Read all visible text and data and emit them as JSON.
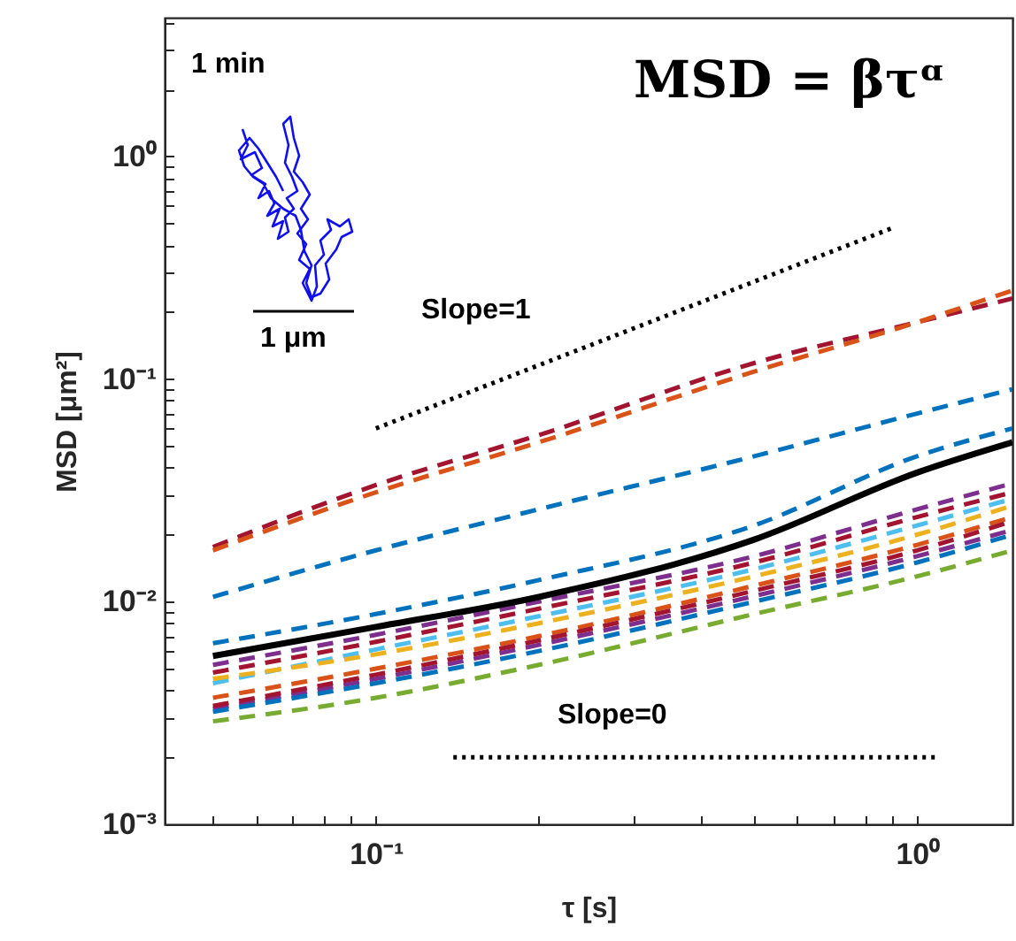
{
  "chart_data": {
    "type": "line",
    "xlabel": "τ [s]",
    "ylabel": "MSD [μm²]",
    "log": "xy",
    "xlim": [
      0.0407,
      1.5
    ],
    "ylim": [
      0.001,
      4.2
    ],
    "xticks": [
      {
        "value": 0.05,
        "label": null
      },
      {
        "value": 0.06,
        "label": null
      },
      {
        "value": 0.07,
        "label": null
      },
      {
        "value": 0.08,
        "label": null
      },
      {
        "value": 0.09,
        "label": null
      },
      {
        "value": 0.1,
        "label": "10⁻¹"
      },
      {
        "value": 0.2,
        "label": null
      },
      {
        "value": 0.3,
        "label": null
      },
      {
        "value": 0.4,
        "label": null
      },
      {
        "value": 0.5,
        "label": null
      },
      {
        "value": 0.6,
        "label": null
      },
      {
        "value": 0.7,
        "label": null
      },
      {
        "value": 0.8,
        "label": null
      },
      {
        "value": 0.9,
        "label": null
      },
      {
        "value": 1,
        "label": "10⁰"
      }
    ],
    "yticks": [
      {
        "value": 0.001,
        "label": "10⁻³"
      },
      {
        "value": 0.002,
        "label": null
      },
      {
        "value": 0.003,
        "label": null
      },
      {
        "value": 0.004,
        "label": null
      },
      {
        "value": 0.005,
        "label": null
      },
      {
        "value": 0.006,
        "label": null
      },
      {
        "value": 0.007,
        "label": null
      },
      {
        "value": 0.008,
        "label": null
      },
      {
        "value": 0.009,
        "label": null
      },
      {
        "value": 0.01,
        "label": "10⁻²"
      },
      {
        "value": 0.02,
        "label": null
      },
      {
        "value": 0.03,
        "label": null
      },
      {
        "value": 0.04,
        "label": null
      },
      {
        "value": 0.05,
        "label": null
      },
      {
        "value": 0.06,
        "label": null
      },
      {
        "value": 0.07,
        "label": null
      },
      {
        "value": 0.08,
        "label": null
      },
      {
        "value": 0.09,
        "label": null
      },
      {
        "value": 0.1,
        "label": "10⁻¹"
      },
      {
        "value": 0.2,
        "label": null
      },
      {
        "value": 0.3,
        "label": null
      },
      {
        "value": 0.4,
        "label": null
      },
      {
        "value": 0.5,
        "label": null
      },
      {
        "value": 0.6,
        "label": null
      },
      {
        "value": 0.7,
        "label": null
      },
      {
        "value": 0.8,
        "label": null
      },
      {
        "value": 0.9,
        "label": null
      },
      {
        "value": 1,
        "label": "10⁰"
      },
      {
        "value": 2,
        "label": null
      },
      {
        "value": 3,
        "label": null
      },
      {
        "value": 4,
        "label": null
      }
    ],
    "grid": false,
    "marker": "none",
    "x": [
      0.05,
      0.1,
      0.2,
      0.5,
      1.0,
      1.5
    ],
    "series": [
      {
        "color": "#a2142f",
        "line_style": "dashed",
        "values": [
          0.0176,
          0.0334,
          0.056,
          0.118,
          0.18,
          0.23
        ]
      },
      {
        "color": "#d95319",
        "line_style": "dashed",
        "values": [
          0.017,
          0.031,
          0.052,
          0.108,
          0.18,
          0.25
        ]
      },
      {
        "color": "#0072bd",
        "line_style": "dashed",
        "values": [
          0.0105,
          0.017,
          0.026,
          0.045,
          0.07,
          0.09
        ]
      },
      {
        "color": "#0072bd",
        "line_style": "dashed",
        "values": [
          0.0065,
          0.0088,
          0.0125,
          0.022,
          0.045,
          0.06
        ]
      },
      {
        "color": "#7e2f8e",
        "line_style": "dashed",
        "values": [
          0.0052,
          0.0071,
          0.01,
          0.016,
          0.026,
          0.034
        ]
      },
      {
        "color": "#a2142f",
        "line_style": "dashed",
        "values": [
          0.0048,
          0.0066,
          0.0093,
          0.015,
          0.024,
          0.031
        ]
      },
      {
        "color": "#4dbeee",
        "line_style": "dashed",
        "values": [
          0.0043,
          0.0061,
          0.0086,
          0.014,
          0.022,
          0.029
        ]
      },
      {
        "color": "#edb120",
        "line_style": "dashed",
        "values": [
          0.0045,
          0.0058,
          0.008,
          0.013,
          0.02,
          0.027
        ]
      },
      {
        "color": "#d95319",
        "line_style": "dashed",
        "values": [
          0.0037,
          0.005,
          0.007,
          0.0118,
          0.018,
          0.024
        ]
      },
      {
        "color": "#7e2f8e",
        "line_style": "dashed",
        "values": [
          0.0033,
          0.0045,
          0.0064,
          0.0106,
          0.016,
          0.021
        ]
      },
      {
        "color": "#a2142f",
        "line_style": "dashed",
        "values": [
          0.0034,
          0.0047,
          0.0067,
          0.0112,
          0.017,
          0.023
        ]
      },
      {
        "color": "#0072bd",
        "line_style": "dashed",
        "values": [
          0.0032,
          0.0043,
          0.006,
          0.01,
          0.015,
          0.02
        ]
      },
      {
        "color": "#77ac30",
        "line_style": "dashed",
        "values": [
          0.0029,
          0.0037,
          0.0052,
          0.0088,
          0.013,
          0.017
        ]
      },
      {
        "color": "#000000",
        "line_style": "solid",
        "values": [
          0.0057,
          0.0077,
          0.0105,
          0.019,
          0.038,
          0.052
        ]
      },
      {
        "type": "line",
        "color": "#000000",
        "line_style": "dotted",
        "x": [
          0.1,
          0.906
        ],
        "values": [
          0.06,
          0.48
        ]
      },
      {
        "type": "line",
        "color": "#000000",
        "line_style": "dotted",
        "x": [
          0.139,
          1.086
        ],
        "values": [
          0.002,
          0.002
        ]
      }
    ],
    "annotations": [
      "1 min",
      "1 μm",
      "MSD = βτᵅ",
      "Slope=1",
      "Slope=0"
    ]
  }
}
